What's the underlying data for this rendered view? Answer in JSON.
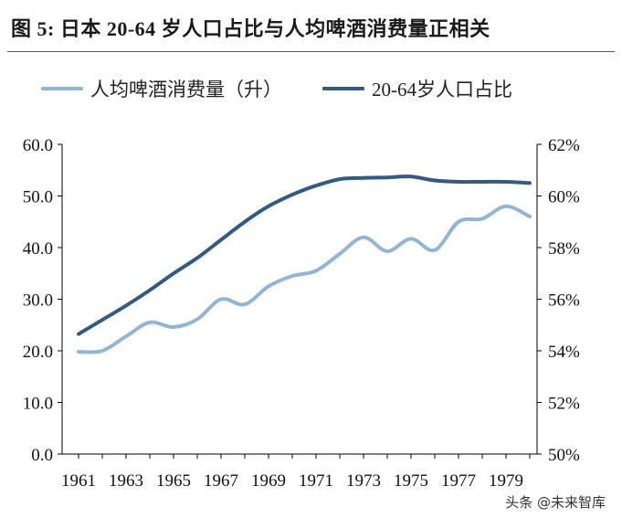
{
  "title": "图 5:  日本 20-64 岁人口占比与人均啤酒消费量正相关",
  "watermark": "头条 @未来智库",
  "colors": {
    "beer": "#94b4d4",
    "population": "#345a82"
  },
  "chart_data": {
    "type": "line",
    "title": "图 5:  日本 20-64 岁人口占比与人均啤酒消费量正相关",
    "legend_position": "top",
    "grid": false,
    "x": [
      1961,
      1962,
      1963,
      1964,
      1965,
      1966,
      1967,
      1968,
      1969,
      1970,
      1971,
      1972,
      1973,
      1974,
      1975,
      1976,
      1977,
      1978,
      1979,
      1980
    ],
    "x_tick_labels": [
      "1961",
      "1963",
      "1965",
      "1967",
      "1969",
      "1971",
      "1973",
      "1975",
      "1977",
      "1979"
    ],
    "y_left": {
      "range": [
        0,
        60
      ],
      "ticks": [
        "0.0",
        "10.0",
        "20.0",
        "30.0",
        "40.0",
        "50.0",
        "60.0"
      ]
    },
    "y_right": {
      "range": [
        50,
        62
      ],
      "ticks": [
        "50%",
        "52%",
        "54%",
        "56%",
        "58%",
        "60%",
        "62%"
      ]
    },
    "series": [
      {
        "name": "人均啤酒消费量（升）",
        "axis": "left",
        "values": [
          19.8,
          20.0,
          22.8,
          25.5,
          24.6,
          26.1,
          30.0,
          29.0,
          32.5,
          34.5,
          35.5,
          38.8,
          42.0,
          39.3,
          41.7,
          39.5,
          45.0,
          45.6,
          48.0,
          46.0
        ]
      },
      {
        "name": "20-64岁人口占比",
        "axis": "right",
        "values": [
          54.65,
          55.2,
          55.75,
          56.35,
          57.0,
          57.6,
          58.3,
          59.0,
          59.6,
          60.05,
          60.4,
          60.65,
          60.7,
          60.72,
          60.75,
          60.6,
          60.55,
          60.55,
          60.55,
          60.5
        ]
      }
    ]
  }
}
